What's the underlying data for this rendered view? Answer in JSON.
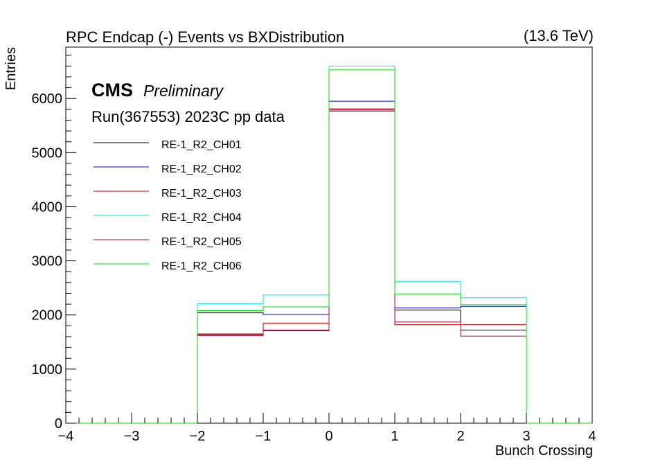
{
  "chart_data": {
    "type": "histogram-step",
    "title": "RPC Endcap (-)  Events vs BXDistribution",
    "energy_label": "(13.6 TeV)",
    "xlabel": "Bunch Crossing",
    "ylabel": "Entries",
    "xlim": [
      -4,
      4
    ],
    "ylim": [
      0,
      6950
    ],
    "xticks": [
      -4,
      -3,
      -2,
      -1,
      0,
      1,
      2,
      3,
      4
    ],
    "yticks": [
      0,
      1000,
      2000,
      3000,
      4000,
      5000,
      6000
    ],
    "cms_label": "CMS",
    "cms_sub": "Preliminary",
    "run_label": "Run(367553) 2023C pp data",
    "bin_edges": [
      -4,
      -3,
      -2,
      -1,
      0,
      1,
      2,
      3,
      4
    ],
    "series": [
      {
        "name": "RE-1_R2_CH01",
        "color": "#000000",
        "values": [
          0,
          0,
          1650,
          1710,
          5770,
          2090,
          1720,
          0
        ]
      },
      {
        "name": "RE-1_R2_CH02",
        "color": "#0000cc",
        "values": [
          0,
          0,
          2040,
          2010,
          5950,
          2130,
          2160,
          0
        ]
      },
      {
        "name": "RE-1_R2_CH03",
        "color": "#cc0000",
        "values": [
          0,
          0,
          1640,
          1850,
          5810,
          1820,
          1820,
          0
        ]
      },
      {
        "name": "RE-1_R2_CH04",
        "color": "#00e5e5",
        "values": [
          0,
          0,
          2210,
          2370,
          6600,
          2620,
          2320,
          0
        ]
      },
      {
        "name": "RE-1_R2_CH05",
        "color": "#b5004a",
        "values": [
          0,
          0,
          1620,
          1720,
          5790,
          1870,
          1610,
          0
        ]
      },
      {
        "name": "RE-1_R2_CH06",
        "color": "#00dd00",
        "values": [
          0,
          0,
          2080,
          2150,
          6530,
          2390,
          2190,
          0
        ]
      }
    ],
    "legend_position": "top-left"
  }
}
